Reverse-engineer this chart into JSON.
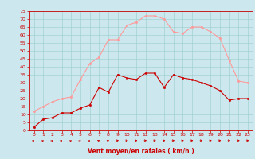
{
  "x": [
    0,
    1,
    2,
    3,
    4,
    5,
    6,
    7,
    8,
    9,
    10,
    11,
    12,
    13,
    14,
    15,
    16,
    17,
    18,
    19,
    20,
    21,
    22,
    23
  ],
  "vent_moyen": [
    2,
    7,
    8,
    11,
    11,
    14,
    16,
    27,
    24,
    35,
    33,
    32,
    36,
    36,
    27,
    35,
    33,
    32,
    30,
    28,
    25,
    19,
    20,
    20
  ],
  "rafales": [
    12,
    15,
    18,
    20,
    21,
    32,
    42,
    46,
    57,
    57,
    66,
    68,
    72,
    72,
    70,
    62,
    61,
    65,
    65,
    62,
    58,
    44,
    31,
    30
  ],
  "xlabel": "Vent moyen/en rafales ( km/h )",
  "ylim": [
    0,
    75
  ],
  "xlim": [
    -0.5,
    23.5
  ],
  "yticks": [
    0,
    5,
    10,
    15,
    20,
    25,
    30,
    35,
    40,
    45,
    50,
    55,
    60,
    65,
    70,
    75
  ],
  "xticks": [
    0,
    1,
    2,
    3,
    4,
    5,
    6,
    7,
    8,
    9,
    10,
    11,
    12,
    13,
    14,
    15,
    16,
    17,
    18,
    19,
    20,
    21,
    22,
    23
  ],
  "color_moyen": "#cc0000",
  "color_rafales": "#ff9999",
  "background_color": "#cce8ee",
  "grid_color": "#99cccc",
  "arrow_color": "#cc0000",
  "xlabel_color": "#cc0000",
  "tick_color": "#cc0000",
  "spine_color": "#cc0000",
  "arrow_angles": [
    45,
    45,
    45,
    45,
    45,
    45,
    45,
    35,
    30,
    10,
    10,
    5,
    5,
    5,
    5,
    5,
    5,
    5,
    5,
    5,
    5,
    5,
    5,
    5
  ]
}
